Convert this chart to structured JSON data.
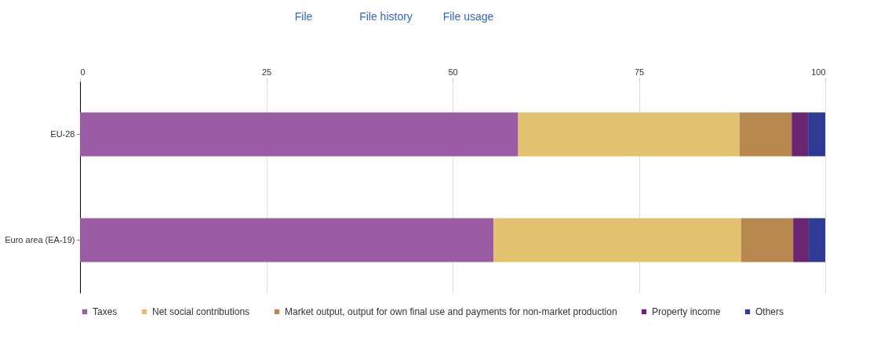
{
  "chart_data": {
    "type": "bar",
    "orientation": "horizontal",
    "stacked": true,
    "categories": [
      "EU-28",
      "Euro area (EA-19)"
    ],
    "series": [
      {
        "name": "Taxes",
        "color": "#9b5ba5",
        "values": [
          58.8,
          55.5
        ]
      },
      {
        "name": "Net social contributions",
        "color": "#e3c26f",
        "values": [
          29.7,
          33.2
        ]
      },
      {
        "name": "Market output, output for own final use and payments for non-market production",
        "color": "#b8894e",
        "values": [
          7.0,
          7.0
        ]
      },
      {
        "name": "Property income",
        "color": "#6a2670",
        "values": [
          2.2,
          2.1
        ]
      },
      {
        "name": "Others",
        "color": "#2e3a93",
        "values": [
          2.3,
          2.2
        ]
      }
    ],
    "xlim": [
      0,
      100
    ],
    "xticks": [
      0,
      25,
      50,
      75,
      100
    ],
    "grid": "x",
    "legend": "bottom",
    "annotations": [
      "File",
      "File history",
      "File usage"
    ]
  }
}
